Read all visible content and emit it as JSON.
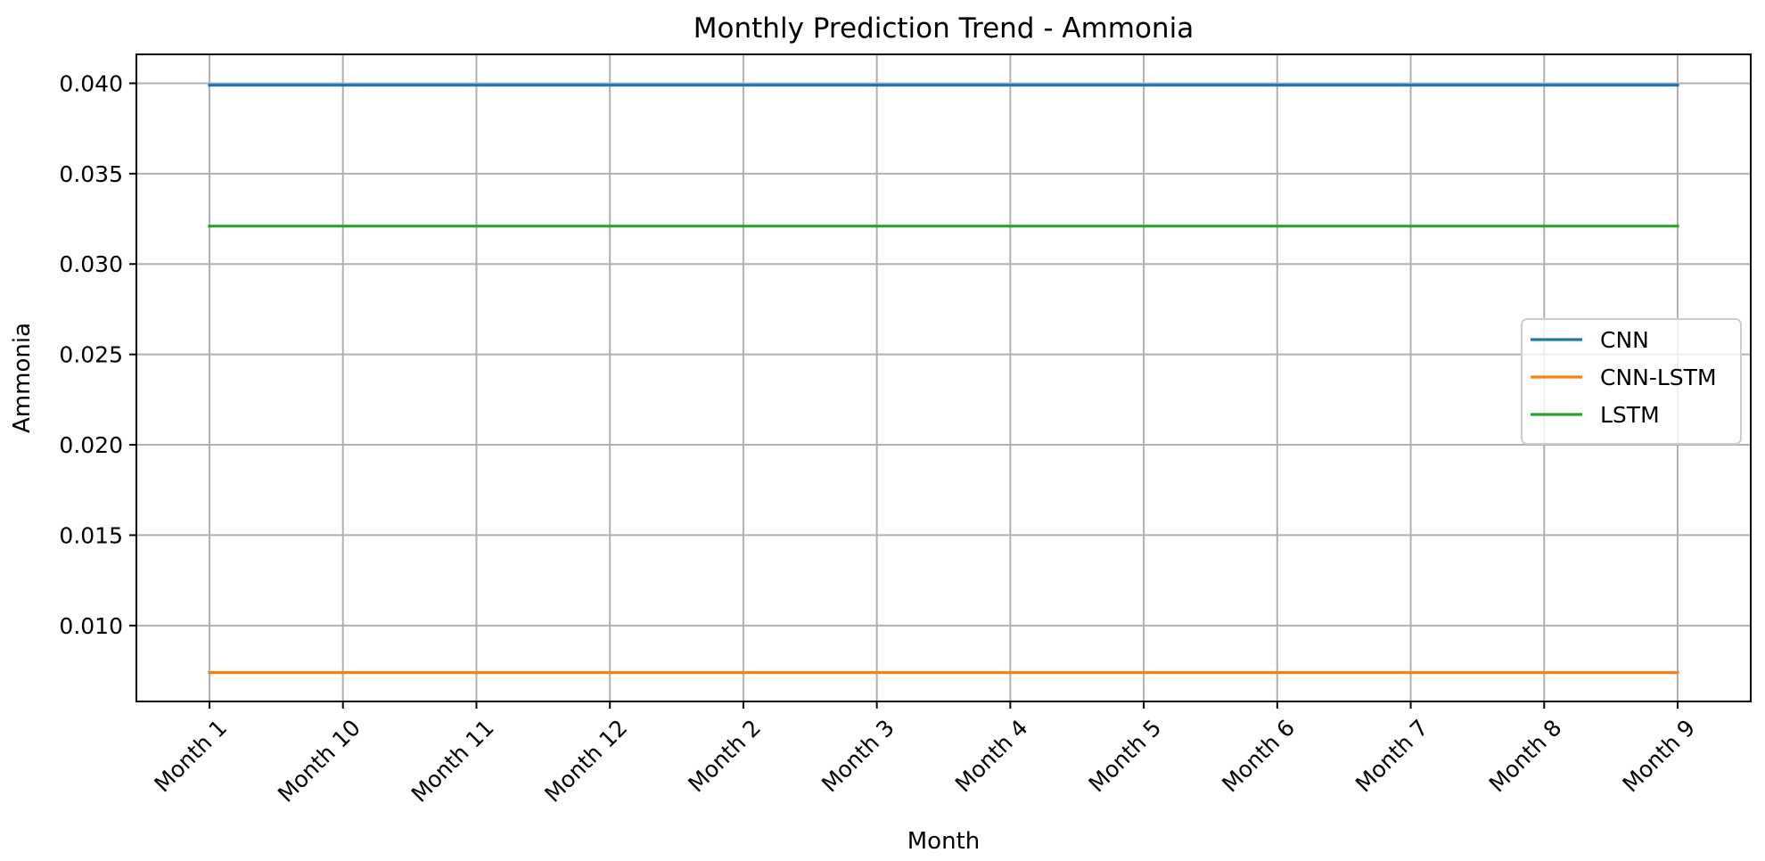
{
  "chart_data": {
    "type": "line",
    "title": "Monthly Prediction Trend - Ammonia",
    "xlabel": "Month",
    "ylabel": "Ammonia",
    "categories": [
      "Month 1",
      "Month 10",
      "Month 11",
      "Month 12",
      "Month 2",
      "Month 3",
      "Month 4",
      "Month 5",
      "Month 6",
      "Month 7",
      "Month 8",
      "Month 9"
    ],
    "yticks": [
      "0.010",
      "0.015",
      "0.020",
      "0.025",
      "0.030",
      "0.035",
      "0.040"
    ],
    "ylim": [
      0.0058,
      0.0416
    ],
    "grid": true,
    "legend_position": "center-right",
    "series": [
      {
        "name": "CNN",
        "color": "#1f77b4",
        "values": [
          0.0399,
          0.0399,
          0.0399,
          0.0399,
          0.0399,
          0.0399,
          0.0399,
          0.0399,
          0.0399,
          0.0399,
          0.0399,
          0.0399
        ]
      },
      {
        "name": "CNN-LSTM",
        "color": "#ff7f0e",
        "values": [
          0.0074,
          0.0074,
          0.0074,
          0.0074,
          0.0074,
          0.0074,
          0.0074,
          0.0074,
          0.0074,
          0.0074,
          0.0074,
          0.0074
        ]
      },
      {
        "name": "LSTM",
        "color": "#2ca02c",
        "values": [
          0.0321,
          0.0321,
          0.0321,
          0.0321,
          0.0321,
          0.0321,
          0.0321,
          0.0321,
          0.0321,
          0.0321,
          0.0321,
          0.0321
        ]
      }
    ]
  }
}
